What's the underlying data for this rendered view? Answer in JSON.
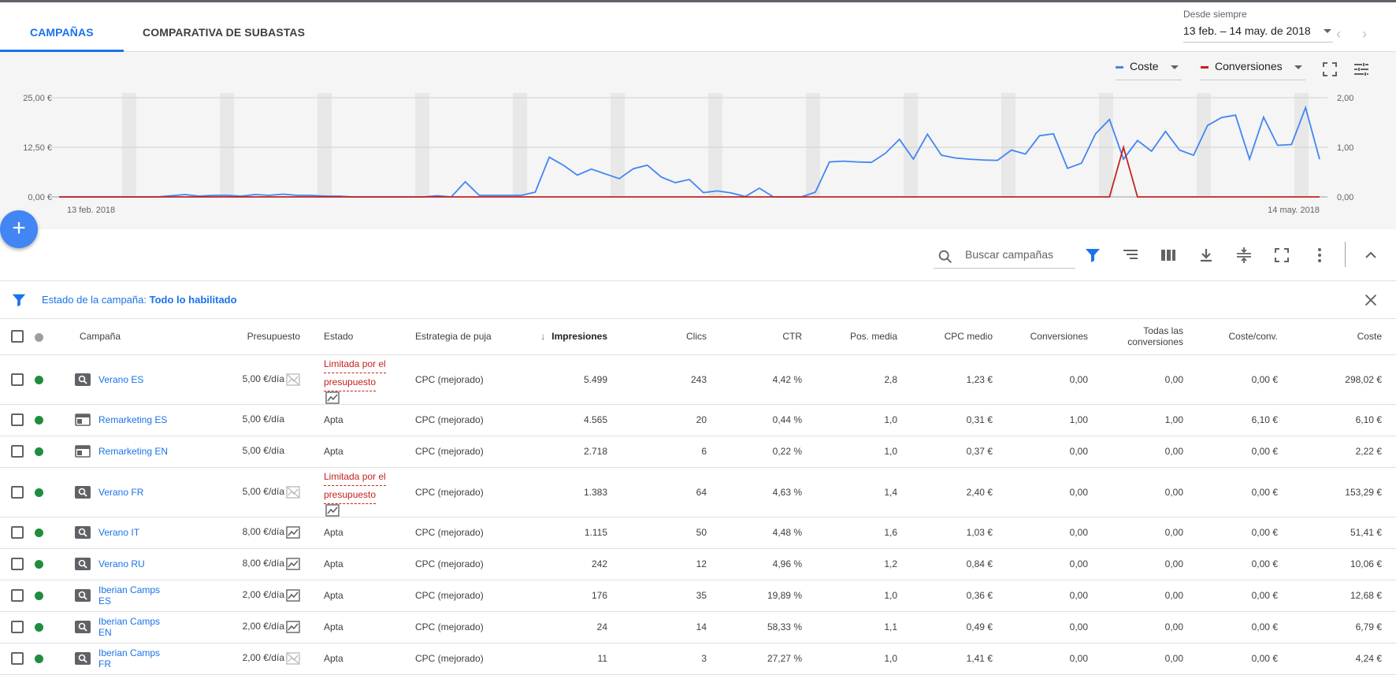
{
  "tabs": {
    "campaigns": "CAMPAÑAS",
    "auction": "COMPARATIVA DE SUBASTAS"
  },
  "date": {
    "small": "Desde siempre",
    "range": "13 feb. – 14 may. de 2018"
  },
  "metrics": {
    "left": {
      "label": "Coste",
      "color": "#4285f4"
    },
    "right": {
      "label": "Conversiones",
      "color": "#c5221f"
    }
  },
  "chart_data": {
    "type": "line",
    "x_start": "13 feb. 2018",
    "x_end": "14 may. 2018",
    "y_left_ticks": [
      "25,00 €",
      "12,50 €",
      "0,00 €"
    ],
    "y_right_ticks": [
      "2,00",
      "1,00",
      "0,00"
    ],
    "y_left_range": [
      0,
      25
    ],
    "y_right_range": [
      0,
      2
    ],
    "series": [
      {
        "name": "Coste",
        "color": "#4285f4",
        "axis": "left",
        "values": [
          0,
          0,
          0,
          0,
          0,
          0,
          0,
          0,
          0.3,
          0.6,
          0.2,
          0.4,
          0.4,
          0.2,
          0.6,
          0.4,
          0.7,
          0.4,
          0.4,
          0.2,
          0.2,
          0,
          0,
          0,
          0,
          0,
          0,
          0.3,
          0,
          3.8,
          0.4,
          0.4,
          0.4,
          0.4,
          1.2,
          10.0,
          8.0,
          5.5,
          7.0,
          5.8,
          4.6,
          7.1,
          8.0,
          5.0,
          3.6,
          4.4,
          1.1,
          1.5,
          1.0,
          0.1,
          2.2,
          0,
          0,
          0,
          1.2,
          8.8,
          9.0,
          8.8,
          8.7,
          11.0,
          14.5,
          9.5,
          15.8,
          10.5,
          9.8,
          9.5,
          9.3,
          9.2,
          11.8,
          10.8,
          15.4,
          15.9,
          7.2,
          8.5,
          15.9,
          19.5,
          9.5,
          14.2,
          11.5,
          16.5,
          11.8,
          10.5,
          18.0,
          20.0,
          20.6,
          9.5,
          20.1,
          13.0,
          13.2,
          22.5,
          9.5
        ]
      },
      {
        "name": "Conversiones",
        "color": "#c5221f",
        "axis": "right",
        "values": [
          0,
          0,
          0,
          0,
          0,
          0,
          0,
          0,
          0,
          0,
          0,
          0,
          0,
          0,
          0,
          0,
          0,
          0,
          0,
          0,
          0,
          0,
          0,
          0,
          0,
          0,
          0,
          0,
          0,
          0,
          0,
          0,
          0,
          0,
          0,
          0,
          0,
          0,
          0,
          0,
          0,
          0,
          0,
          0,
          0,
          0,
          0,
          0,
          0,
          0,
          0,
          0,
          0,
          0,
          0,
          0,
          0,
          0,
          0,
          0,
          0,
          0,
          0,
          0,
          0,
          0,
          0,
          0,
          0,
          0,
          0,
          0,
          0,
          0,
          0,
          0,
          1.0,
          0,
          0,
          0,
          0,
          0,
          0,
          0,
          0,
          0,
          0,
          0,
          0,
          0,
          0
        ]
      }
    ],
    "grid": true
  },
  "toolbar": {
    "search_placeholder": "Buscar campañas"
  },
  "filter": {
    "label": "Estado de la campaña: ",
    "value": "Todo lo habilitado"
  },
  "table": {
    "headers": {
      "campaign": "Campaña",
      "budget": "Presupuesto",
      "status": "Estado",
      "bid": "Estrategia de puja",
      "impr": "Impresiones",
      "clicks": "Clics",
      "ctr": "CTR",
      "pos": "Pos. media",
      "cpc": "CPC medio",
      "conv": "Conversiones",
      "allconv_1": "Todas las",
      "allconv_2": "conversiones",
      "costconv": "Coste/conv.",
      "cost": "Coste"
    },
    "rows": [
      {
        "name": "Verano ES",
        "type": "search-icon",
        "budget": "5,00 €/día",
        "trend": "chart-off-icon",
        "status_1": "Limitada por el",
        "status_2": "presupuesto",
        "limited": true,
        "bid": "CPC (mejorado)",
        "impr": "5.499",
        "clicks": "243",
        "ctr": "4,42 %",
        "pos": "2,8",
        "cpc": "1,23 €",
        "conv": "0,00",
        "allconv": "0,00",
        "costconv": "0,00 €",
        "cost": "298,02 €"
      },
      {
        "name": "Remarketing ES",
        "type": "display-icon",
        "budget": "5,00 €/día",
        "trend": "",
        "status_1": "Apta",
        "status_2": "",
        "limited": false,
        "bid": "CPC (mejorado)",
        "impr": "4.565",
        "clicks": "20",
        "ctr": "0,44 %",
        "pos": "1,0",
        "cpc": "0,31 €",
        "conv": "1,00",
        "allconv": "1,00",
        "costconv": "6,10 €",
        "cost": "6,10 €"
      },
      {
        "name": "Remarketing EN",
        "type": "display-icon",
        "budget": "5,00 €/día",
        "trend": "",
        "status_1": "Apta",
        "status_2": "",
        "limited": false,
        "bid": "CPC (mejorado)",
        "impr": "2.718",
        "clicks": "6",
        "ctr": "0,22 %",
        "pos": "1,0",
        "cpc": "0,37 €",
        "conv": "0,00",
        "allconv": "0,00",
        "costconv": "0,00 €",
        "cost": "2,22 €"
      },
      {
        "name": "Verano FR",
        "type": "search-icon",
        "budget": "5,00 €/día",
        "trend": "chart-off-icon",
        "status_1": "Limitada por el",
        "status_2": "presupuesto",
        "limited": true,
        "bid": "CPC (mejorado)",
        "impr": "1.383",
        "clicks": "64",
        "ctr": "4,63 %",
        "pos": "1,4",
        "cpc": "2,40 €",
        "conv": "0,00",
        "allconv": "0,00",
        "costconv": "0,00 €",
        "cost": "153,29 €"
      },
      {
        "name": "Verano IT",
        "type": "search-icon",
        "budget": "8,00 €/día",
        "trend": "chart-icon",
        "status_1": "Apta",
        "status_2": "",
        "limited": false,
        "bid": "CPC (mejorado)",
        "impr": "1.115",
        "clicks": "50",
        "ctr": "4,48 %",
        "pos": "1,6",
        "cpc": "1,03 €",
        "conv": "0,00",
        "allconv": "0,00",
        "costconv": "0,00 €",
        "cost": "51,41 €"
      },
      {
        "name": "Verano RU",
        "type": "search-icon",
        "budget": "8,00 €/día",
        "trend": "chart-icon",
        "status_1": "Apta",
        "status_2": "",
        "limited": false,
        "bid": "CPC (mejorado)",
        "impr": "242",
        "clicks": "12",
        "ctr": "4,96 %",
        "pos": "1,2",
        "cpc": "0,84 €",
        "conv": "0,00",
        "allconv": "0,00",
        "costconv": "0,00 €",
        "cost": "10,06 €"
      },
      {
        "name": "Iberian Camps ES",
        "type": "search-icon",
        "budget": "2,00 €/día",
        "trend": "chart-icon",
        "status_1": "Apta",
        "status_2": "",
        "limited": false,
        "bid": "CPC (mejorado)",
        "impr": "176",
        "clicks": "35",
        "ctr": "19,89 %",
        "pos": "1,0",
        "cpc": "0,36 €",
        "conv": "0,00",
        "allconv": "0,00",
        "costconv": "0,00 €",
        "cost": "12,68 €"
      },
      {
        "name": "Iberian Camps EN",
        "type": "search-icon",
        "budget": "2,00 €/día",
        "trend": "chart-icon",
        "status_1": "Apta",
        "status_2": "",
        "limited": false,
        "bid": "CPC (mejorado)",
        "impr": "24",
        "clicks": "14",
        "ctr": "58,33 %",
        "pos": "1,1",
        "cpc": "0,49 €",
        "conv": "0,00",
        "allconv": "0,00",
        "costconv": "0,00 €",
        "cost": "6,79 €"
      },
      {
        "name": "Iberian Camps FR",
        "type": "search-icon",
        "budget": "2,00 €/día",
        "trend": "chart-off-icon",
        "status_1": "Apta",
        "status_2": "",
        "limited": false,
        "bid": "CPC (mejorado)",
        "impr": "11",
        "clicks": "3",
        "ctr": "27,27 %",
        "pos": "1,0",
        "cpc": "1,41 €",
        "conv": "0,00",
        "allconv": "0,00",
        "costconv": "0,00 €",
        "cost": "4,24 €"
      }
    ]
  }
}
